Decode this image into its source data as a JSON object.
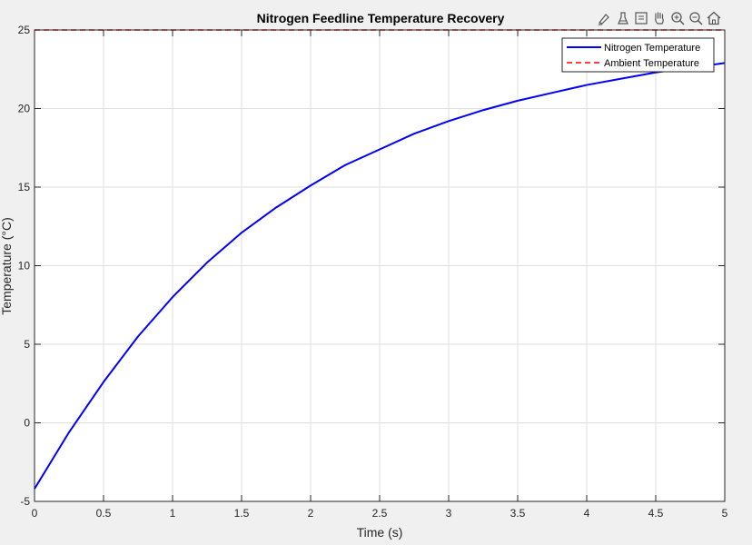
{
  "chart_data": {
    "type": "line",
    "title": "Nitrogen Feedline Temperature Recovery",
    "xlabel": "Time (s)",
    "ylabel": "Temperature (°C)",
    "xlim": [
      0,
      5
    ],
    "ylim": [
      -5,
      25
    ],
    "x_ticks": [
      "0",
      "0.5",
      "1",
      "1.5",
      "2",
      "2.5",
      "3",
      "3.5",
      "4",
      "4.5",
      "5"
    ],
    "y_ticks": [
      "-5",
      "0",
      "5",
      "10",
      "15",
      "20",
      "25"
    ],
    "grid": true,
    "legend_position": "top-right",
    "series": [
      {
        "name": "Nitrogen Temperature",
        "color": "#0000ff",
        "style": "solid",
        "x": [
          0,
          0.25,
          0.5,
          0.75,
          1,
          1.25,
          1.5,
          1.75,
          2,
          2.25,
          2.5,
          2.75,
          3,
          3.25,
          3.5,
          3.75,
          4,
          4.25,
          4.5,
          4.75,
          5
        ],
        "y": [
          -4.2,
          -0.6,
          2.6,
          5.5,
          8.0,
          10.2,
          12.1,
          13.7,
          15.1,
          16.4,
          17.4,
          18.4,
          19.2,
          19.9,
          20.5,
          21.0,
          21.5,
          21.9,
          22.3,
          22.6,
          22.9
        ]
      },
      {
        "name": "Ambient Temperature",
        "color": "#ff0000",
        "style": "dashed",
        "x": [
          0,
          5
        ],
        "y": [
          25,
          25
        ]
      }
    ]
  },
  "toolbar": {
    "icons": [
      "brush-icon",
      "data-tips-icon",
      "legend-toggle-icon",
      "pan-hand-icon",
      "zoom-in-icon",
      "zoom-out-icon",
      "home-icon"
    ]
  }
}
